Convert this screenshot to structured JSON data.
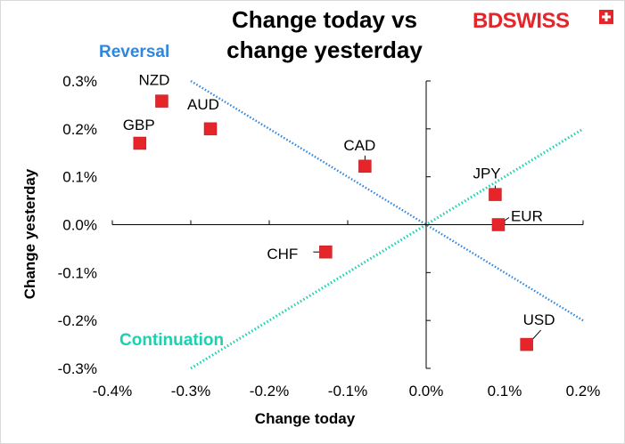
{
  "colors": {
    "marker": "#e5252a",
    "reversal": "#2e86de",
    "continuation": "#1bd1b0",
    "axis": "#000000",
    "brand": "#e5252a"
  },
  "brand": {
    "logo_text": "BDSWISS",
    "logo_icon": "plus-cross-icon"
  },
  "chart_data": {
    "type": "scatter",
    "title": [
      "Change today vs",
      "change yesterday"
    ],
    "xlabel": "Change today",
    "ylabel": "Change yesterday",
    "xlim": [
      -0.4,
      0.2
    ],
    "ylim": [
      -0.3,
      0.3
    ],
    "x_ticks": [
      -0.4,
      -0.3,
      -0.2,
      -0.1,
      0.0,
      0.1,
      0.2
    ],
    "x_tick_labels": [
      "-0.4%",
      "-0.3%",
      "-0.2%",
      "-0.1%",
      "0.0%",
      "0.1%",
      "0.2%"
    ],
    "y_ticks": [
      0.3,
      0.2,
      0.1,
      0.0,
      -0.1,
      -0.2,
      -0.3
    ],
    "y_tick_labels": [
      "0.3%",
      "0.2%",
      "0.1%",
      "0.0%",
      "-0.1%",
      "-0.2%",
      "-0.3%"
    ],
    "points": [
      {
        "label": "NZD",
        "x": -0.337,
        "y": 0.258
      },
      {
        "label": "AUD",
        "x": -0.275,
        "y": 0.2
      },
      {
        "label": "GBP",
        "x": -0.365,
        "y": 0.17
      },
      {
        "label": "CAD",
        "x": -0.078,
        "y": 0.122
      },
      {
        "label": "JPY",
        "x": 0.088,
        "y": 0.063
      },
      {
        "label": "EUR",
        "x": 0.092,
        "y": 0.0
      },
      {
        "label": "CHF",
        "x": -0.128,
        "y": -0.057
      },
      {
        "label": "USD",
        "x": 0.128,
        "y": -0.25
      }
    ],
    "lines": [
      {
        "name": "Reversal",
        "from": [
          -0.3,
          0.3
        ],
        "to": [
          0.2,
          -0.2
        ]
      },
      {
        "name": "Continuation",
        "from": [
          -0.3,
          -0.3
        ],
        "to": [
          0.2,
          0.2
        ]
      }
    ],
    "annotations": {
      "reversal": "Reversal",
      "continuation": "Continuation"
    }
  }
}
